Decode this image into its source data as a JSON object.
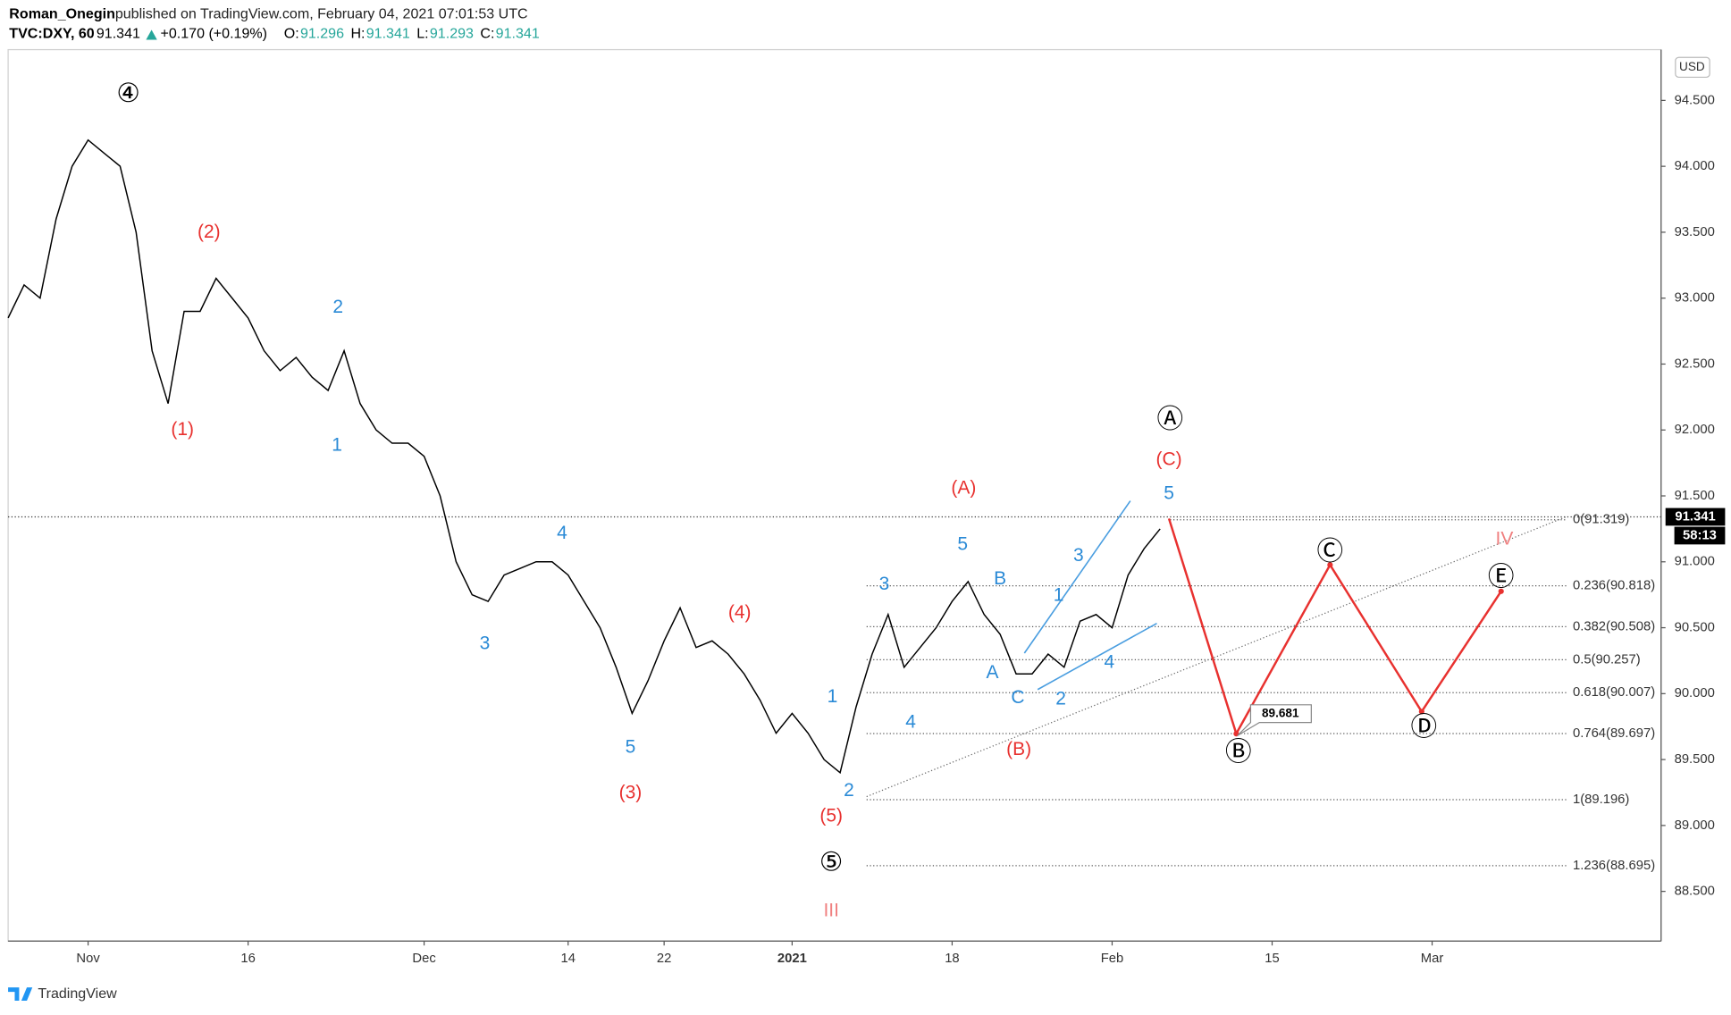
{
  "header": {
    "author": "Roman_Onegin",
    "published": "published on TradingView.com, February 04, 2021 07:01:53 UTC",
    "symbol": "TVC:DXY, 60",
    "last": "91.341",
    "change": "+0.170 (+0.19%)",
    "ohlc": [
      {
        "label": "O:",
        "value": "91.296"
      },
      {
        "label": "H:",
        "value": "91.341"
      },
      {
        "label": "L:",
        "value": "91.293"
      },
      {
        "label": "C:",
        "value": "91.341"
      }
    ]
  },
  "chart_data": {
    "type": "line",
    "color": "#000000",
    "categories": [
      null,
      null,
      null,
      null,
      null,
      "Nov",
      null,
      null,
      null,
      null,
      null,
      null,
      null,
      null,
      null,
      "16",
      null,
      null,
      null,
      null,
      null,
      null,
      null,
      null,
      null,
      null,
      "Dec",
      null,
      null,
      null,
      null,
      null,
      null,
      null,
      null,
      "14",
      null,
      null,
      null,
      null,
      null,
      "22",
      null,
      null,
      null,
      null,
      null,
      null,
      null,
      "2021",
      null,
      null,
      null,
      null,
      null,
      null,
      null,
      null,
      null,
      "18",
      null,
      null,
      null,
      null,
      null,
      null,
      null,
      null,
      null,
      "Feb",
      null,
      null,
      null,
      null,
      null,
      null,
      null,
      null,
      null,
      "15",
      null,
      null,
      null,
      null,
      null,
      null,
      null,
      null,
      null,
      "Mar",
      null,
      null,
      null,
      null,
      null,
      null,
      null,
      null,
      null,
      null,
      null,
      null,
      null,
      null
    ],
    "values": [
      92.85,
      93.1,
      93.0,
      93.6,
      94.0,
      94.2,
      94.1,
      94.0,
      93.5,
      92.6,
      92.2,
      92.9,
      92.9,
      93.15,
      93.0,
      92.85,
      92.6,
      92.45,
      92.55,
      92.4,
      92.3,
      92.6,
      92.2,
      92.0,
      91.9,
      91.9,
      91.8,
      91.5,
      91.0,
      90.75,
      90.7,
      90.9,
      90.95,
      91.0,
      91.0,
      90.9,
      90.7,
      90.5,
      90.2,
      89.85,
      90.1,
      90.4,
      90.65,
      90.35,
      90.4,
      90.3,
      90.15,
      89.95,
      89.7,
      89.85,
      89.7,
      89.5,
      89.4,
      89.9,
      90.3,
      90.6,
      90.2,
      90.35,
      90.5,
      90.7,
      90.85,
      90.6,
      90.45,
      90.15,
      90.15,
      90.3,
      90.2,
      90.55,
      90.6,
      90.5,
      90.9,
      91.1,
      91.25,
      null,
      null,
      null,
      null,
      null,
      null,
      null,
      null,
      null,
      null,
      null,
      null,
      null,
      null,
      null,
      null,
      null,
      null,
      null,
      null,
      null,
      null,
      null,
      null,
      null,
      null,
      null,
      null,
      null,
      null,
      null
    ],
    "ylim": [
      88.123,
      94.885
    ],
    "yticks": [
      {
        "value": 88.5,
        "label": "88.500"
      },
      {
        "value": 89,
        "label": "89.000"
      },
      {
        "value": 89.5,
        "label": "89.500"
      },
      {
        "value": 90,
        "label": "90.000"
      },
      {
        "value": 90.5,
        "label": "90.500"
      },
      {
        "value": 91,
        "label": "91.000"
      },
      {
        "value": 91.5,
        "label": "91.500"
      },
      {
        "value": 92,
        "label": "92.000"
      },
      {
        "value": 92.5,
        "label": "92.500"
      },
      {
        "value": 93,
        "label": "93.000"
      },
      {
        "value": 93.5,
        "label": "93.500"
      },
      {
        "value": 94,
        "label": "94.000"
      },
      {
        "value": 94.5,
        "label": "94.500"
      }
    ],
    "currency": "USD",
    "last_price": {
      "value": 91.341,
      "label": "91.341"
    },
    "countdown": "58:13",
    "fib_levels": [
      {
        "value": 91.319,
        "label": "0(91.319)"
      },
      {
        "value": 90.818,
        "label": "0.236(90.818)"
      },
      {
        "value": 90.508,
        "label": "0.382(90.508)"
      },
      {
        "value": 90.257,
        "label": "0.5(90.257)"
      },
      {
        "value": 90.007,
        "label": "0.618(90.007)"
      },
      {
        "value": 89.697,
        "label": "0.764(89.697)"
      },
      {
        "value": 89.196,
        "label": "1(89.196)"
      },
      {
        "value": 88.695,
        "label": "1.236(88.695)"
      }
    ],
    "callout": {
      "value": 89.681,
      "label": "89.681"
    },
    "annotations": [
      {
        "text": "④",
        "color": "#000000"
      },
      {
        "text": "(2)",
        "color": "#e8312f"
      },
      {
        "text": "(1)",
        "color": "#e8312f"
      },
      {
        "text": "(4)",
        "color": "#e8312f"
      },
      {
        "text": "(3)",
        "color": "#e8312f"
      },
      {
        "text": "(5)",
        "color": "#e8312f"
      },
      {
        "text": "(A)",
        "color": "#e8312f"
      },
      {
        "text": "(C)",
        "color": "#e8312f"
      },
      {
        "text": "(B)",
        "color": "#e8312f"
      },
      {
        "text": "III",
        "color": "#f08080"
      },
      {
        "text": "IV",
        "color": "#f08080"
      },
      {
        "text": "2",
        "color": "#2a8ad6"
      },
      {
        "text": "1",
        "color": "#2a8ad6"
      },
      {
        "text": "4",
        "color": "#2a8ad6"
      },
      {
        "text": "3",
        "color": "#2a8ad6"
      },
      {
        "text": "5",
        "color": "#2a8ad6"
      },
      {
        "text": "3",
        "color": "#2a8ad6"
      },
      {
        "text": "1",
        "color": "#2a8ad6"
      },
      {
        "text": "4",
        "color": "#2a8ad6"
      },
      {
        "text": "2",
        "color": "#2a8ad6"
      },
      {
        "text": "5",
        "color": "#2a8ad6"
      },
      {
        "text": "B",
        "color": "#2a8ad6"
      },
      {
        "text": "A",
        "color": "#2a8ad6"
      },
      {
        "text": "C",
        "color": "#2a8ad6"
      },
      {
        "text": "3",
        "color": "#2a8ad6"
      },
      {
        "text": "1",
        "color": "#2a8ad6"
      },
      {
        "text": "2",
        "color": "#2a8ad6"
      },
      {
        "text": "4",
        "color": "#2a8ad6"
      },
      {
        "text": "5",
        "color": "#2a8ad6"
      },
      {
        "text": "⑤",
        "color": "#000000"
      },
      {
        "text": "Ⓐ",
        "color": "#000000"
      },
      {
        "text": "Ⓑ",
        "color": "#000000"
      },
      {
        "text": "Ⓒ",
        "color": "#000000"
      },
      {
        "text": "Ⓓ",
        "color": "#000000"
      },
      {
        "text": "Ⓔ",
        "color": "#000000"
      }
    ]
  },
  "footer": {
    "brand": "TradingView"
  }
}
